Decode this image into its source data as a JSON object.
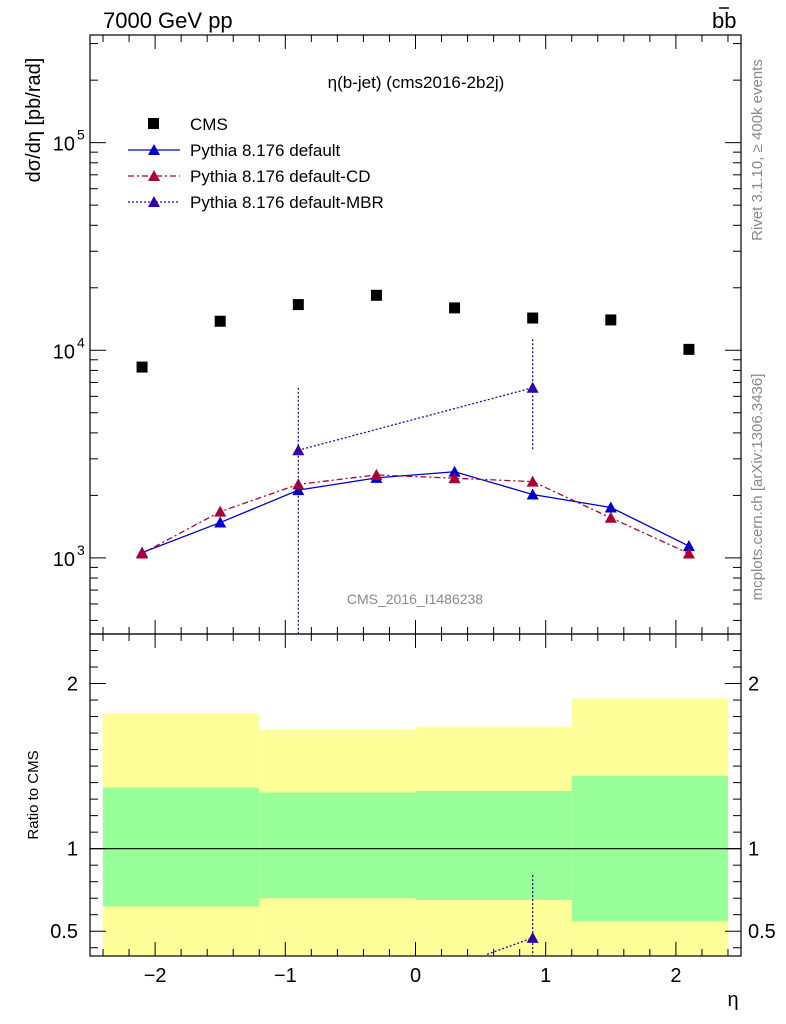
{
  "header": {
    "left": "7000 GeV pp",
    "right": "b",
    "right_bar": "b"
  },
  "side_labels": {
    "rivet": "Rivet 3.1.10, ≥ 400k events",
    "mcplots": "mcplots.cern.ch [arXiv:1306.3436]"
  },
  "chart_data": [
    {
      "type": "scatter",
      "panel": "main",
      "title": "η(b-jet) (cms2016-2b2j)",
      "ylabel": "dσ/dη [pb/rad]",
      "watermark": "CMS_2016_I1486238",
      "yscale": "log",
      "xlim": [
        -2.5,
        2.5
      ],
      "ylim": [
        430,
        330000
      ],
      "y_tick_labels": [
        "10",
        "10",
        "10"
      ],
      "y_tick_exponents": [
        "3",
        "4",
        "5"
      ],
      "y_tick_values": [
        1000,
        10000,
        100000
      ],
      "legend": "top-left",
      "series": [
        {
          "name": "CMS",
          "style": "square",
          "color": "#000000",
          "x": [
            -2.1,
            -1.5,
            -0.9,
            -0.3,
            0.3,
            0.9,
            1.5,
            2.1
          ],
          "y": [
            8300,
            13800,
            16600,
            18400,
            16000,
            14300,
            14000,
            10100
          ]
        },
        {
          "name": "Pythia 8.176 default",
          "style": "solid",
          "color": "#0000cc",
          "x": [
            -2.1,
            -1.5,
            -0.9,
            -0.3,
            0.3,
            0.9,
            1.5,
            2.1
          ],
          "y": [
            1060,
            1480,
            2120,
            2430,
            2600,
            2020,
            1750,
            1140
          ],
          "err": [
            60,
            50,
            60,
            60,
            60,
            60,
            80,
            70
          ]
        },
        {
          "name": "Pythia 8.176 default-CD",
          "style": "dashdot",
          "color": "#aa0033",
          "x": [
            -2.1,
            -1.5,
            -0.9,
            -0.3,
            0.3,
            0.9,
            1.5,
            2.1
          ],
          "y": [
            1050,
            1670,
            2260,
            2510,
            2420,
            2330,
            1560,
            1050
          ],
          "err": [
            50,
            70,
            60,
            60,
            60,
            60,
            60,
            50
          ]
        },
        {
          "name": "Pythia 8.176 default-MBR",
          "style": "dotted",
          "color": "#3300aa",
          "x": [
            -0.9,
            0.9
          ],
          "y": [
            3300,
            6600
          ],
          "err_low": [
            3300,
            3300
          ],
          "err_high": [
            3300,
            4700
          ]
        }
      ]
    },
    {
      "type": "scatter",
      "panel": "ratio",
      "ylabel": "Ratio to CMS",
      "xlabel": "η",
      "xlim": [
        -2.5,
        2.5
      ],
      "ylim": [
        0.35,
        2.3
      ],
      "x_ticks": [
        -2,
        -1,
        0,
        1,
        2
      ],
      "x_tick_labels": [
        "−2",
        "−1",
        "0",
        "1",
        "2"
      ],
      "y_ticks": [
        0.5,
        1,
        2
      ],
      "y_tick_labels": [
        "0.5",
        "1",
        "2"
      ],
      "bands": {
        "edges": [
          -2.4,
          -1.2,
          0.0,
          1.2,
          2.4
        ],
        "yellow_low": [
          0.65,
          0.7,
          0.69,
          0.56
        ],
        "yellow_high": [
          1.82,
          1.72,
          1.74,
          1.91
        ],
        "green_low": [
          0.65,
          0.7,
          0.69,
          0.56
        ],
        "green_high": [
          1.37,
          1.34,
          1.35,
          1.44
        ],
        "yellow_color": "#ffff99",
        "green_color": "#99ff99"
      },
      "mbr_ratio": {
        "x": [
          0.9
        ],
        "y": [
          0.46
        ],
        "err_high": [
          0.38
        ],
        "line_from": [
          0.55,
          0.36
        ]
      }
    }
  ]
}
